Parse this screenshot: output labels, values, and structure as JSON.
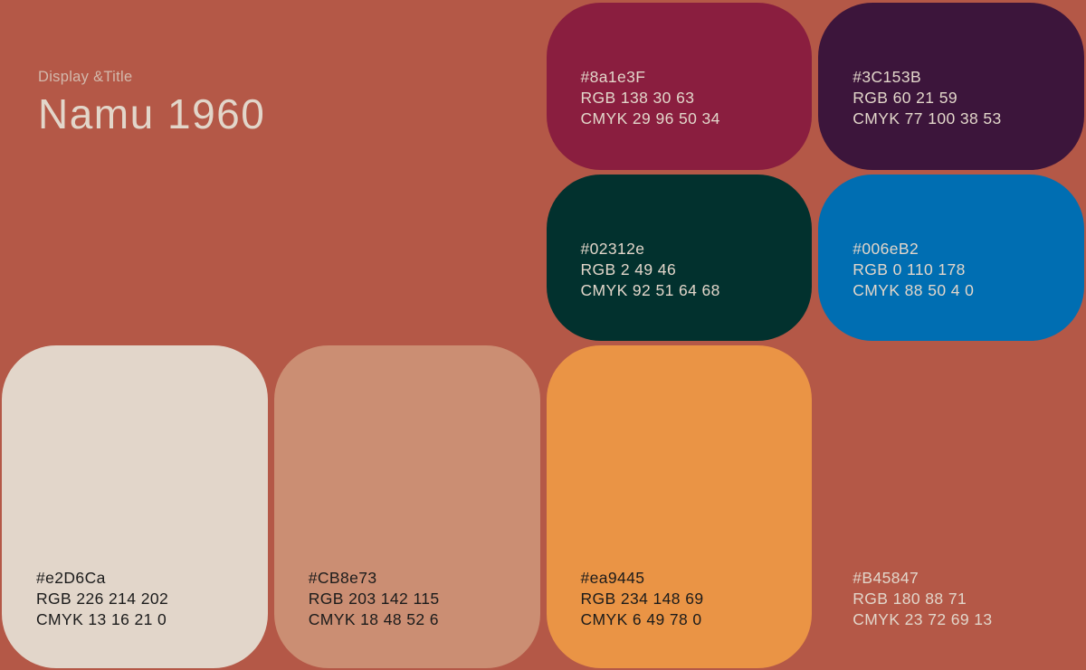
{
  "page": {
    "background": "#B45847"
  },
  "header": {
    "eyebrow": "Display &Title",
    "eyebrow_color": "#D3B9AC",
    "title": "Namu 1960",
    "title_color": "#E2D6CA"
  },
  "swatches": [
    {
      "hex": "#8a1e3F",
      "rgb": "RGB 138 30 63",
      "cmyk": "CMYK 29 96 50 34",
      "fill": "#8A1E3F",
      "text_color": "#E2D6CA"
    },
    {
      "hex": "#3C153B",
      "rgb": "RGB 60 21 59",
      "cmyk": "CMYK 77 100 38 53",
      "fill": "#3C153B",
      "text_color": "#E2D6CA"
    },
    {
      "hex": "#02312e",
      "rgb": "RGB 2 49 46",
      "cmyk": "CMYK 92 51 64 68",
      "fill": "#02312E",
      "text_color": "#E2D6CA"
    },
    {
      "hex": "#006eB2",
      "rgb": "RGB 0 110 178",
      "cmyk": "CMYK 88 50 4 0",
      "fill": "#006EB2",
      "text_color": "#E2D6CA"
    },
    {
      "hex": "#e2D6Ca",
      "rgb": "RGB 226 214 202",
      "cmyk": "CMYK 13 16 21 0",
      "fill": "#E2D6CA",
      "text_color": "#1B1B1B"
    },
    {
      "hex": "#CB8e73",
      "rgb": "RGB 203 142 115",
      "cmyk": "CMYK 18 48 52 6",
      "fill": "#CB8E73",
      "text_color": "#1B1B1B"
    },
    {
      "hex": "#ea9445",
      "rgb": "RGB 234 148 69",
      "cmyk": "CMYK 6 49 78 0",
      "fill": "#EA9445",
      "text_color": "#1B1B1B"
    },
    {
      "hex": "#B45847",
      "rgb": "RGB 180 88 71",
      "cmyk": "CMYK 23 72 69 13",
      "fill": "#B45847",
      "text_color": "#E2D6CA"
    }
  ]
}
